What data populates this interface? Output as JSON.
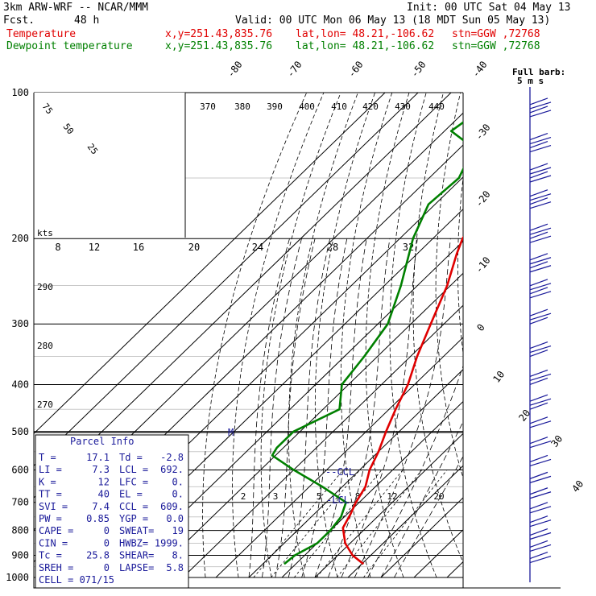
{
  "header": {
    "model": "3km ARW-WRF -- NCAR/MMM",
    "init": "Init: 00 UTC Sat 04 May 13",
    "fcst_label": "Fcst.",
    "fcst_value": "48 h",
    "valid": "Valid: 00 UTC Mon 06 May 13 (18 MDT Sun 05 May 13)",
    "temp_label": "Temperature",
    "dew_label": "Dewpoint temperature",
    "temp_xy": "x,y=251.43,835.76",
    "temp_latlon": "lat,lon= 48.21,-106.62",
    "temp_stn": "stn=GGW ,72768",
    "dew_xy": "x,y=251.43,835.76",
    "dew_latlon": "lat,lon= 48.21,-106.62",
    "dew_stn": "stn=GGW ,72768"
  },
  "colors": {
    "temperature": "#e00000",
    "dewpoint": "#008000",
    "parcel": "#1a1a9a"
  },
  "barb_legend": {
    "line1": "Full barb:",
    "line2": "5 m s"
  },
  "hodograph": {
    "units_label": "kts",
    "rings": [
      "25",
      "50",
      "75"
    ]
  },
  "parcel": {
    "title": "Parcel Info",
    "rows": [
      [
        "T  =",
        "17.1",
        "Td =",
        "-2.8"
      ],
      [
        "LI =",
        "7.3",
        "LCL =",
        "692."
      ],
      [
        "K  =",
        "12",
        "LFC =",
        "0."
      ],
      [
        "TT =",
        "40",
        "EL  =",
        "0."
      ],
      [
        "SVI =",
        "7.4",
        "CCL =",
        "609."
      ],
      [
        "PW =",
        "0.85",
        "YGP =",
        "0.0"
      ],
      [
        "CAPE =",
        "0",
        "SWEAT=",
        "19"
      ],
      [
        "CIN =",
        "0",
        "HWBZ=",
        "1999."
      ],
      [
        "Tc =",
        "25.8",
        "SHEAR=",
        "8."
      ],
      [
        "SREH =",
        "0",
        "LAPSE=",
        "5.8"
      ]
    ],
    "cell": "CELL = 071/15",
    "ccl_label": "CCL",
    "lcl_label": "LCL",
    "m_label": "M"
  },
  "chart_data": {
    "type": "line",
    "title": "",
    "ylabel": "",
    "xlabel": "",
    "y_scale": "log pressure (hPa)",
    "pressure_ticks": [
      "100",
      "200",
      "300",
      "400",
      "500",
      "600",
      "700",
      "800",
      "900",
      "1000"
    ],
    "isotherm_labels": [
      "-80",
      "-70",
      "-60",
      "-50",
      "-40",
      "-30",
      "-20",
      "-10",
      "0",
      "10",
      "20",
      "30",
      "40"
    ],
    "theta_labels": [
      "370",
      "380",
      "390",
      "400",
      "410",
      "420",
      "430",
      "440"
    ],
    "theta_left_labels": [
      "290",
      "280",
      "270"
    ],
    "mixing_labels": [
      "8",
      "12",
      "16",
      "20",
      "24",
      "28",
      "32"
    ],
    "mixing_ratio_labels": [
      "2",
      "3",
      "5",
      "8",
      "12",
      "20"
    ],
    "series": [
      {
        "name": "Temperature",
        "points": [
          [
            938,
            20.5
          ],
          [
            900,
            14.5
          ],
          [
            850,
            8.5
          ],
          [
            790,
            3
          ],
          [
            740,
            1
          ],
          [
            700,
            -1
          ],
          [
            650,
            -3
          ],
          [
            600,
            -7
          ],
          [
            550,
            -10
          ],
          [
            500,
            -14
          ],
          [
            450,
            -18
          ],
          [
            400,
            -22
          ],
          [
            350,
            -28
          ],
          [
            300,
            -34
          ],
          [
            250,
            -41
          ],
          [
            215,
            -48
          ],
          [
            200,
            -51
          ],
          [
            170,
            -55
          ],
          [
            150,
            -56
          ],
          [
            130,
            -55
          ],
          [
            110,
            -54
          ],
          [
            100,
            -53
          ]
        ]
      },
      {
        "name": "Dewpoint temperature",
        "points": [
          [
            938,
            -3.5
          ],
          [
            900,
            -3
          ],
          [
            850,
            0
          ],
          [
            800,
            0
          ],
          [
            750,
            -1
          ],
          [
            700,
            -4
          ],
          [
            650,
            -16
          ],
          [
            600,
            -30
          ],
          [
            560,
            -41
          ],
          [
            540,
            -42
          ],
          [
            500,
            -42
          ],
          [
            450,
            -35
          ],
          [
            400,
            -42
          ],
          [
            350,
            -44
          ],
          [
            300,
            -47
          ],
          [
            250,
            -55
          ],
          [
            200,
            -66
          ],
          [
            170,
            -72
          ],
          [
            150,
            -71
          ],
          [
            130,
            -76
          ],
          [
            120,
            -88
          ],
          [
            110,
            -86
          ],
          [
            100,
            -88
          ]
        ]
      }
    ]
  }
}
